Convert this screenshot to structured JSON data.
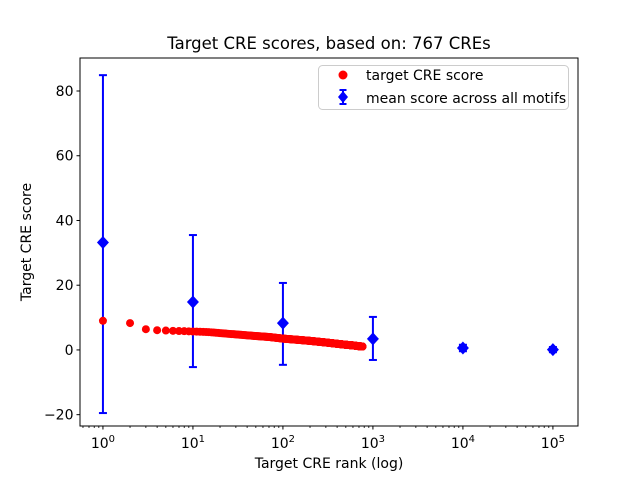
{
  "chart_data": {
    "type": "scatter",
    "title": "Target CRE scores, based on: 767 CREs",
    "xlabel": "Target CRE rank (log)",
    "ylabel": "Target CRE score",
    "x_scale": "log",
    "xlim": [
      0.556,
      190000
    ],
    "ylim": [
      -23.5,
      90.2
    ],
    "grid": false,
    "legend_position": "upper right",
    "x_ticks": [
      {
        "value": 1,
        "base": "10",
        "exp": "0"
      },
      {
        "value": 10,
        "base": "10",
        "exp": "1"
      },
      {
        "value": 100,
        "base": "10",
        "exp": "2"
      },
      {
        "value": 1000,
        "base": "10",
        "exp": "3"
      },
      {
        "value": 10000,
        "base": "10",
        "exp": "4"
      },
      {
        "value": 100000,
        "base": "10",
        "exp": "5"
      }
    ],
    "y_ticks": [
      -20,
      0,
      20,
      40,
      60,
      80
    ],
    "series": [
      {
        "name": "target CRE score",
        "marker": "circle",
        "color": "#ff0000",
        "n_points": 767,
        "x_is_rank_1_to_n": true,
        "control_points": [
          [
            1,
            9.0
          ],
          [
            2,
            8.3
          ],
          [
            3,
            6.4
          ],
          [
            4,
            6.1
          ],
          [
            5,
            6.0
          ],
          [
            6,
            5.9
          ],
          [
            8,
            5.8
          ],
          [
            10,
            5.7
          ],
          [
            15,
            5.5
          ],
          [
            20,
            5.2
          ],
          [
            30,
            4.8
          ],
          [
            50,
            4.3
          ],
          [
            70,
            4.0
          ],
          [
            100,
            3.5
          ],
          [
            150,
            3.1
          ],
          [
            200,
            2.8
          ],
          [
            300,
            2.3
          ],
          [
            430,
            1.8
          ],
          [
            500,
            1.6
          ],
          [
            600,
            1.4
          ],
          [
            700,
            1.15
          ],
          [
            767,
            1.05
          ]
        ]
      },
      {
        "name": "mean score across all motifs",
        "marker": "diamond",
        "color": "#0000ff",
        "points": [
          {
            "x": 1,
            "y": 33.2,
            "err_low": 52.7,
            "err_high": 51.7
          },
          {
            "x": 10,
            "y": 14.8,
            "err_low": 20.1,
            "err_high": 20.7
          },
          {
            "x": 100,
            "y": 8.3,
            "err_low": 12.9,
            "err_high": 12.4
          },
          {
            "x": 1000,
            "y": 3.4,
            "err_low": 6.5,
            "err_high": 6.8
          },
          {
            "x": 10000,
            "y": 0.6,
            "err_low": 1.0,
            "err_high": 1.0
          },
          {
            "x": 100000,
            "y": 0.1,
            "err_low": 0.8,
            "err_high": 0.8
          }
        ]
      }
    ],
    "colors": {
      "red_series": "#ff0000",
      "blue_series": "#0000ff",
      "axes": "#000000",
      "legend_border": "#cccccc",
      "background": "#ffffff"
    }
  }
}
